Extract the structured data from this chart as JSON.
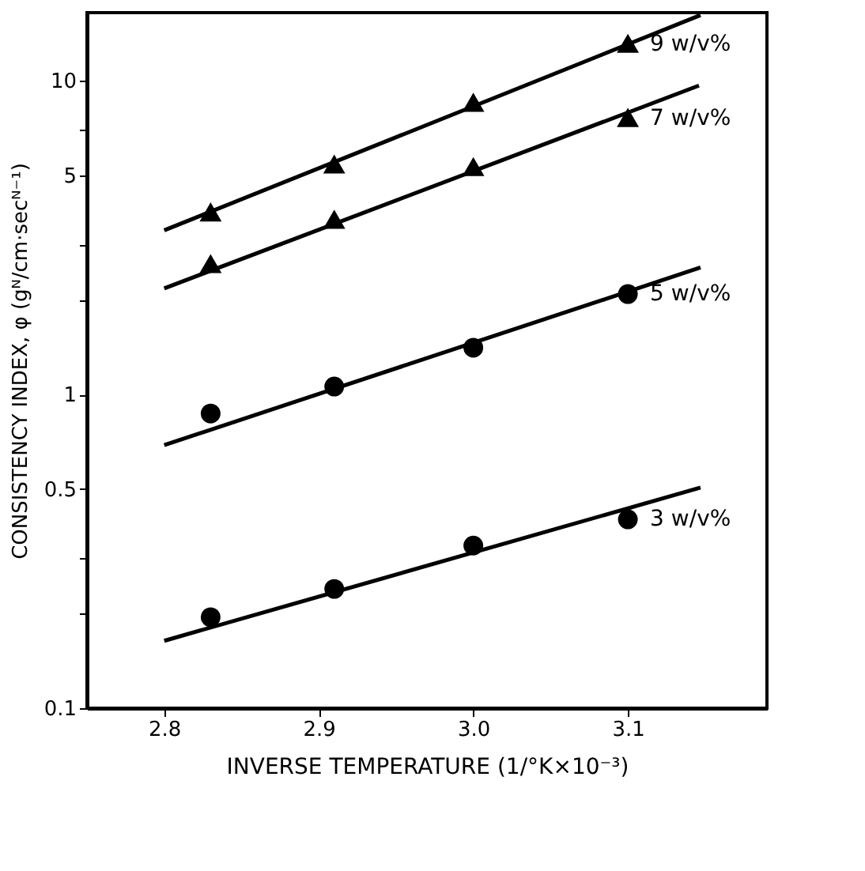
{
  "chart_data": {
    "type": "scatter",
    "xlabel": "INVERSE TEMPERATURE (1/°K×10⁻³)",
    "ylabel": "CONSISTENCY INDEX, φ (gᴺ/cm·secᴺ⁻¹)",
    "log": "y",
    "grid": false,
    "xlim": [
      2.75,
      3.19
    ],
    "xticks": [
      2.8,
      2.9,
      {
        "value": 3.0,
        "label": "3.0"
      },
      3.1
    ],
    "ylim": [
      0.1,
      16.5
    ],
    "yticks": [
      0.1,
      {
        "value": 0.2,
        "label": null
      },
      {
        "value": 0.3,
        "label": null
      },
      0.5,
      1,
      {
        "value": 2,
        "label": null
      },
      {
        "value": 3,
        "label": null
      },
      5,
      {
        "value": 7,
        "label": null
      },
      10
    ],
    "series": [
      {
        "name": "9 w/v%",
        "marker": "triangle",
        "color": "#000000",
        "x": [
          2.83,
          2.91,
          3.0,
          3.1
        ],
        "values": [
          3.8,
          5.4,
          8.5,
          13.1
        ]
      },
      {
        "name": "7 w/v%",
        "marker": "triangle",
        "color": "#000000",
        "x": [
          2.83,
          2.91,
          3.0,
          3.1
        ],
        "values": [
          2.6,
          3.6,
          5.3,
          7.6
        ]
      },
      {
        "name": "5 w/v%",
        "marker": "circle",
        "color": "#000000",
        "x": [
          2.83,
          2.91,
          3.0,
          3.1
        ],
        "values": [
          0.87,
          1.06,
          1.41,
          2.09
        ]
      },
      {
        "name": "3 w/v%",
        "marker": "circle",
        "color": "#000000",
        "x": [
          2.83,
          2.91,
          3.0,
          3.1
        ],
        "values": [
          0.195,
          0.24,
          0.33,
          0.4
        ]
      },
      {
        "type": "line",
        "color": "#000000",
        "x": [
          2.8,
          3.147
        ],
        "values": [
          3.34,
          16.2
        ]
      },
      {
        "type": "line",
        "color": "#000000",
        "x": [
          2.8,
          3.146
        ],
        "values": [
          2.18,
          9.66
        ]
      },
      {
        "type": "line",
        "color": "#000000",
        "x": [
          2.8,
          3.147
        ],
        "values": [
          0.69,
          2.54
        ]
      },
      {
        "type": "line",
        "color": "#000000",
        "x": [
          2.8,
          3.147
        ],
        "values": [
          0.164,
          0.505
        ]
      }
    ]
  }
}
